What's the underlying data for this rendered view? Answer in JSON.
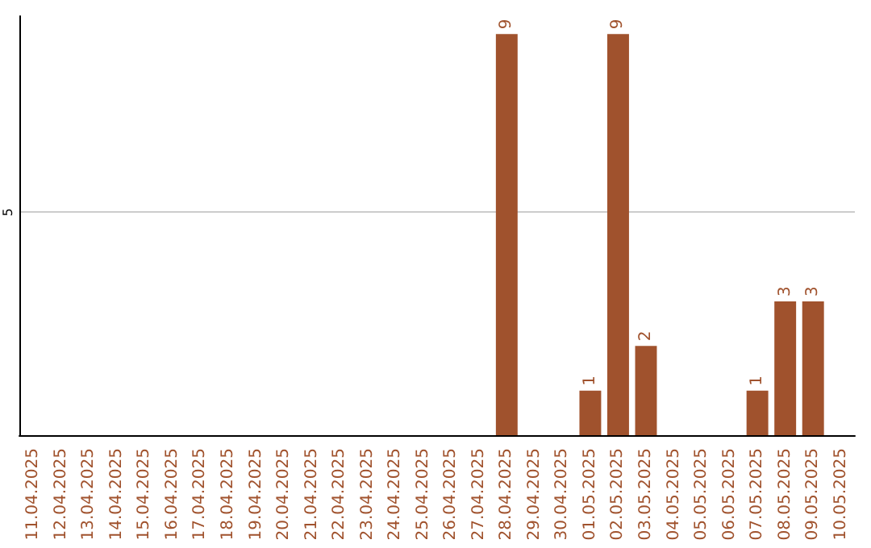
{
  "chart_data": {
    "type": "bar",
    "categories": [
      "11.04.2025",
      "12.04.2025",
      "13.04.2025",
      "14.04.2025",
      "15.04.2025",
      "16.04.2025",
      "17.04.2025",
      "18.04.2025",
      "19.04.2025",
      "20.04.2025",
      "21.04.2025",
      "22.04.2025",
      "23.04.2025",
      "24.04.2025",
      "25.04.2025",
      "26.04.2025",
      "27.04.2025",
      "28.04.2025",
      "29.04.2025",
      "30.04.2025",
      "01.05.2025",
      "02.05.2025",
      "03.05.2025",
      "04.05.2025",
      "05.05.2025",
      "06.05.2025",
      "07.05.2025",
      "08.05.2025",
      "09.05.2025",
      "10.05.2025"
    ],
    "values": [
      null,
      null,
      null,
      null,
      null,
      null,
      null,
      null,
      null,
      null,
      null,
      null,
      null,
      null,
      null,
      null,
      null,
      9,
      null,
      null,
      1,
      9,
      2,
      null,
      null,
      null,
      1,
      3,
      3,
      null
    ],
    "color": "#a0522d",
    "ylim": [
      0,
      9.4
    ],
    "yticks": [
      5
    ],
    "grid": "y",
    "data_labels": true
  }
}
